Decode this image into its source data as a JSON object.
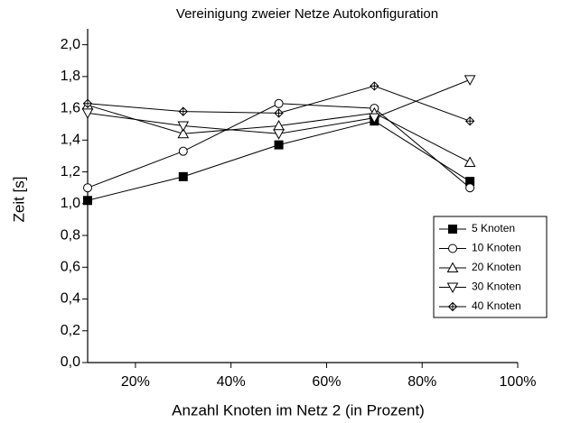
{
  "chart_data": {
    "type": "line",
    "title": "Vereinigung zweier Netze Autokonfiguration",
    "xlabel": "Anzahl Knoten im Netz 2 (in Prozent)",
    "ylabel": "Zeit [s]",
    "x": [
      10,
      30,
      50,
      70,
      90
    ],
    "series": [
      {
        "name": "5 Knoten",
        "color": "#000000",
        "marker": "square-filled",
        "values": [
          1.02,
          1.17,
          1.37,
          1.52,
          1.14
        ]
      },
      {
        "name": "10 Knoten",
        "color": "#000000",
        "marker": "circle",
        "values": [
          1.1,
          1.33,
          1.63,
          1.6,
          1.1
        ]
      },
      {
        "name": "20 Knoten",
        "color": "#000000",
        "marker": "triangle-up",
        "values": [
          1.62,
          1.44,
          1.49,
          1.57,
          1.26
        ]
      },
      {
        "name": "30 Knoten",
        "color": "#000000",
        "marker": "triangle-down",
        "values": [
          1.57,
          1.49,
          1.44,
          1.54,
          1.78
        ]
      },
      {
        "name": "40 Knoten",
        "color": "#000000",
        "marker": "diamond-plus",
        "values": [
          1.63,
          1.58,
          1.57,
          1.74,
          1.52
        ]
      }
    ],
    "xlim": [
      10,
      100
    ],
    "xticks": [
      {
        "value": 20,
        "label": "20%"
      },
      {
        "value": 40,
        "label": "40%"
      },
      {
        "value": 60,
        "label": "60%"
      },
      {
        "value": 80,
        "label": "80%"
      },
      {
        "value": 100,
        "label": "100%"
      }
    ],
    "ylim": [
      0,
      2.1
    ],
    "yticks": [
      {
        "value": 0,
        "label": "0,0"
      },
      {
        "value": 0.2,
        "label": "0,2"
      },
      {
        "value": 0.4,
        "label": "0,4"
      },
      {
        "value": 0.6,
        "label": "0,6"
      },
      {
        "value": 0.8,
        "label": "0,8"
      },
      {
        "value": 1.0,
        "label": "1,0"
      },
      {
        "value": 1.2,
        "label": "1,2"
      },
      {
        "value": 1.4,
        "label": "1,4"
      },
      {
        "value": 1.6,
        "label": "1,6"
      },
      {
        "value": 1.8,
        "label": "1,8"
      },
      {
        "value": 2.0,
        "label": "2,0"
      }
    ],
    "legend": "right"
  }
}
